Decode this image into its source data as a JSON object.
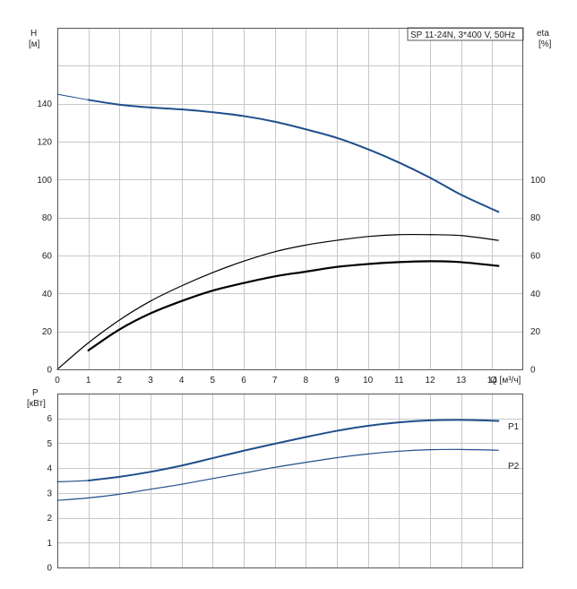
{
  "title_box": "SP 11-24N, 3*400 V, 50Hz",
  "chart_data": [
    {
      "type": "line",
      "name": "head-efficiency",
      "xlabel": "Q [м³/ч]",
      "xlim": [
        0,
        15
      ],
      "xticks": [
        0,
        1,
        2,
        3,
        4,
        5,
        6,
        7,
        8,
        9,
        10,
        11,
        12,
        13,
        14
      ],
      "y_left": {
        "label_top": "H",
        "label_unit": "[м]",
        "lim": [
          0,
          180
        ],
        "ticks": [
          0,
          20,
          40,
          60,
          80,
          100,
          120,
          140
        ]
      },
      "y_right": {
        "label_top": "eta",
        "label_unit": "[%]",
        "lim": [
          0,
          180
        ],
        "ticks": [
          0,
          20,
          40,
          60,
          80,
          100
        ]
      },
      "series": [
        {
          "name": "H",
          "axis": "left",
          "color": "#1f4e8c",
          "x": [
            1,
            2,
            3,
            4,
            5,
            6,
            7,
            8,
            9,
            10,
            11,
            12,
            13,
            14.2
          ],
          "y": [
            142,
            139.5,
            138,
            137,
            135.5,
            133.5,
            130.5,
            126.5,
            122,
            116,
            109,
            101,
            92,
            83
          ]
        },
        {
          "name": "H-extension",
          "axis": "left",
          "color": "#1f4e8c",
          "x": [
            0,
            0.5,
            1
          ],
          "y": [
            145,
            143.5,
            142
          ]
        },
        {
          "name": "eta-total",
          "axis": "right",
          "color": "#000000",
          "x": [
            1,
            2,
            3,
            4,
            5,
            6,
            7,
            8,
            9,
            10,
            11,
            12,
            13,
            14.2
          ],
          "y": [
            10,
            21,
            29.5,
            36,
            41.5,
            45.5,
            49,
            51.5,
            54,
            55.5,
            56.5,
            57,
            56.5,
            54.5
          ]
        },
        {
          "name": "eta-pump",
          "axis": "right",
          "color": "#000000",
          "x": [
            0,
            1,
            2,
            3,
            4,
            5,
            6,
            7,
            8,
            9,
            10,
            11,
            12,
            13,
            14.2
          ],
          "y": [
            0,
            14,
            26,
            36,
            44,
            51,
            57,
            62,
            65.5,
            68,
            70,
            71,
            71,
            70.5,
            68
          ]
        }
      ]
    },
    {
      "type": "line",
      "name": "power",
      "xlim": [
        0,
        15
      ],
      "y_left": {
        "label_top": "P",
        "label_unit": "[кВт]",
        "lim": [
          0,
          7
        ],
        "ticks": [
          0,
          1,
          2,
          3,
          4,
          5,
          6
        ]
      },
      "series": [
        {
          "name": "P1",
          "label": "P1",
          "color": "#1f4e8c",
          "x": [
            1,
            2,
            3,
            4,
            5,
            6,
            7,
            8,
            9,
            10,
            11,
            12,
            13,
            14.2
          ],
          "y": [
            3.5,
            3.65,
            3.85,
            4.1,
            4.4,
            4.7,
            4.98,
            5.25,
            5.5,
            5.7,
            5.84,
            5.92,
            5.94,
            5.9
          ]
        },
        {
          "name": "P1-extension",
          "color": "#1f4e8c",
          "x": [
            0,
            0.5,
            1
          ],
          "y": [
            3.45,
            3.47,
            3.5
          ]
        },
        {
          "name": "P2",
          "label": "P2",
          "color": "#1f4e8c",
          "x": [
            0,
            1,
            2,
            3,
            4,
            5,
            6,
            7,
            8,
            9,
            10,
            11,
            12,
            13,
            14.2
          ],
          "y": [
            2.7,
            2.8,
            2.95,
            3.15,
            3.35,
            3.58,
            3.8,
            4.03,
            4.23,
            4.42,
            4.57,
            4.68,
            4.74,
            4.75,
            4.72
          ]
        }
      ]
    }
  ]
}
